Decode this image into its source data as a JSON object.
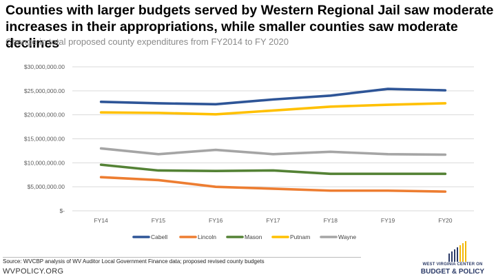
{
  "title": "Counties with larger budgets served by Western Regional Jail saw moderate increases in their appropriations, while smaller counties saw moderate declines",
  "subtitle": "Change in total proposed county expenditures from FY2014 to FY 2020",
  "source": "Source: WVCBP analysis of WV Auditor Local Government Finance data; proposed revised county budgets",
  "footer": "WVPOLICY.ORG",
  "logo": {
    "line1": "WEST VIRGINIA CENTER ON",
    "line2": "BUDGET & POLICY"
  },
  "chart_data": {
    "type": "line",
    "title": "Counties with larger budgets served by Western Regional Jail saw moderate increases in their appropriations, while smaller counties saw moderate declines",
    "subtitle": "Change in total proposed county expenditures from FY2014 to FY 2020",
    "xlabel": "",
    "ylabel": "",
    "categories": [
      "FY14",
      "FY15",
      "FY16",
      "FY17",
      "FY18",
      "FY19",
      "FY20"
    ],
    "ylim": [
      0,
      30000000
    ],
    "yticks": [
      0,
      5000000,
      10000000,
      15000000,
      20000000,
      25000000,
      30000000
    ],
    "ytick_labels": [
      "$-",
      "$5,000,000.00",
      "$10,000,000.00",
      "$15,000,000.00",
      "$20,000,000.00",
      "$25,000,000.00",
      "$30,000,000.00"
    ],
    "grid": true,
    "legend_position": "bottom",
    "series": [
      {
        "name": "Cabell",
        "color": "#2e5597",
        "values": [
          22700000,
          22400000,
          22200000,
          23200000,
          24000000,
          25400000,
          25100000
        ]
      },
      {
        "name": "Lincoln",
        "color": "#ed7d31",
        "values": [
          7000000,
          6400000,
          5000000,
          4600000,
          4200000,
          4200000,
          4000000
        ]
      },
      {
        "name": "Mason",
        "color": "#548235",
        "values": [
          9600000,
          8400000,
          8300000,
          8400000,
          7700000,
          7700000,
          7700000
        ]
      },
      {
        "name": "Putnam",
        "color": "#ffc000",
        "values": [
          20500000,
          20400000,
          20100000,
          20900000,
          21700000,
          22100000,
          22400000
        ]
      },
      {
        "name": "Wayne",
        "color": "#a5a5a5",
        "values": [
          13000000,
          11800000,
          12700000,
          11800000,
          12300000,
          11800000,
          11700000
        ]
      }
    ]
  }
}
